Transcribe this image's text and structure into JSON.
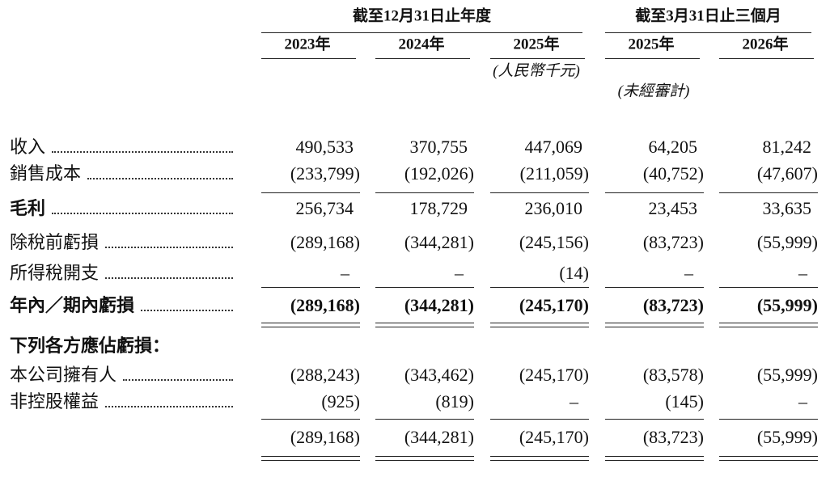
{
  "header": {
    "groups": [
      {
        "title": "截至12月31日止年度"
      },
      {
        "title": "截至3月31日止三個月"
      }
    ],
    "years": [
      "2023年",
      "2024年",
      "2025年",
      "2025年",
      "2026年"
    ],
    "unit": "(人民幣千元)",
    "audit_note": "(未經審計)"
  },
  "table": {
    "rows": [
      {
        "label": "收入",
        "cells": [
          "490,533",
          "370,755",
          "447,069",
          "64,205",
          "81,242"
        ]
      },
      {
        "label": "銷售成本",
        "cells": [
          "(233,799)",
          "(192,026)",
          "(211,059)",
          "(40,752)",
          "(47,607)"
        ]
      },
      {
        "label": "毛利",
        "cells": [
          "256,734",
          "178,729",
          "236,010",
          "23,453",
          "33,635"
        ]
      },
      {
        "label": "除稅前虧損",
        "cells": [
          "(289,168)",
          "(344,281)",
          "(245,156)",
          "(83,723)",
          "(55,999)"
        ]
      },
      {
        "label": "所得稅開支",
        "cells": [
          "–",
          "–",
          "(14)",
          "–",
          "–"
        ]
      },
      {
        "label": "年內／期內虧損",
        "cells": [
          "(289,168)",
          "(344,281)",
          "(245,170)",
          "(83,723)",
          "(55,999)"
        ]
      },
      {
        "label": "下列各方應佔虧損："
      },
      {
        "label": "本公司擁有人",
        "cells": [
          "(288,243)",
          "(343,462)",
          "(245,170)",
          "(83,578)",
          "(55,999)"
        ]
      },
      {
        "label": "非控股權益",
        "cells": [
          "(925)",
          "(819)",
          "–",
          "(145)",
          "–"
        ]
      },
      {
        "cells": [
          "(289,168)",
          "(344,281)",
          "(245,170)",
          "(83,723)",
          "(55,999)"
        ]
      }
    ]
  }
}
